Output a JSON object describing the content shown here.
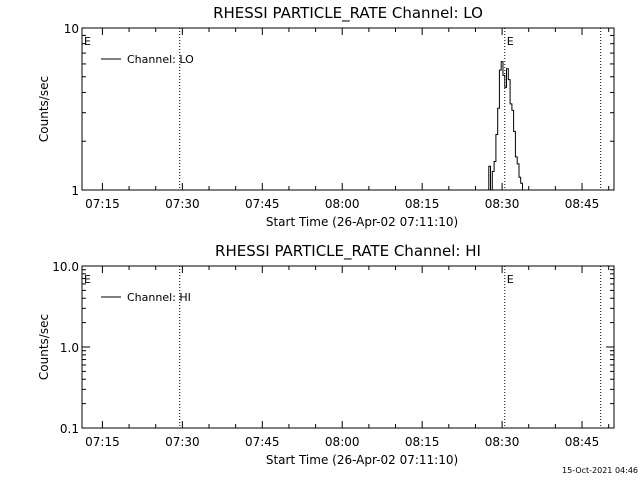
{
  "footer": {
    "timestamp": "15-Oct-2021 04:46"
  },
  "chart_data": [
    {
      "type": "line",
      "title": "RHESSI PARTICLE_RATE Channel: LO",
      "xlabel": "Start Time (26-Apr-02 07:11:10)",
      "ylabel": "Counts/sec",
      "x_ticks": [
        "07:15",
        "07:30",
        "07:45",
        "08:00",
        "08:15",
        "08:30",
        "08:45"
      ],
      "y_ticks": [
        "1",
        "10"
      ],
      "y_scale": "log",
      "ylim": [
        1,
        10
      ],
      "xlim": [
        "07:11:10",
        "08:51:00"
      ],
      "legend": {
        "label": "Channel: LO",
        "position": "top-left"
      },
      "markers": [
        {
          "label": "E",
          "time": "07:11:10"
        },
        {
          "label": "E",
          "time": "08:30:30"
        }
      ],
      "vlines": [
        "07:29:30",
        "08:30:30",
        "08:48:30"
      ],
      "series": [
        {
          "name": "Channel: LO",
          "x": [
            "08:27:10",
            "08:27:30",
            "08:27:50",
            "08:28:10",
            "08:28:30",
            "08:28:50",
            "08:29:10",
            "08:29:30",
            "08:29:50",
            "08:30:10",
            "08:30:30",
            "08:30:50",
            "08:31:10",
            "08:31:30",
            "08:31:50",
            "08:32:10",
            "08:32:30",
            "08:32:50",
            "08:33:10",
            "08:33:30",
            "08:33:50",
            "08:34:10"
          ],
          "y": [
            1,
            1.4,
            1,
            1.3,
            1.5,
            2.2,
            3.2,
            5.5,
            6.2,
            5.1,
            4.3,
            5.6,
            4.8,
            3.4,
            3.1,
            2.3,
            1.6,
            1.45,
            1.2,
            1.1,
            1,
            1
          ]
        }
      ]
    },
    {
      "type": "line",
      "title": "RHESSI PARTICLE_RATE Channel: HI",
      "xlabel": "Start Time (26-Apr-02 07:11:10)",
      "ylabel": "Counts/sec",
      "x_ticks": [
        "07:15",
        "07:30",
        "07:45",
        "08:00",
        "08:15",
        "08:30",
        "08:45"
      ],
      "y_ticks": [
        "0.1",
        "1.0",
        "10.0"
      ],
      "y_scale": "log",
      "ylim": [
        0.1,
        10
      ],
      "xlim": [
        "07:11:10",
        "08:51:00"
      ],
      "legend": {
        "label": "Channel: HI",
        "position": "top-left"
      },
      "markers": [
        {
          "label": "E",
          "time": "07:11:10"
        },
        {
          "label": "E",
          "time": "08:30:30"
        }
      ],
      "vlines": [
        "07:29:30",
        "08:30:30",
        "08:48:30"
      ],
      "series": [
        {
          "name": "Channel: HI",
          "x": [],
          "y": []
        }
      ]
    }
  ]
}
